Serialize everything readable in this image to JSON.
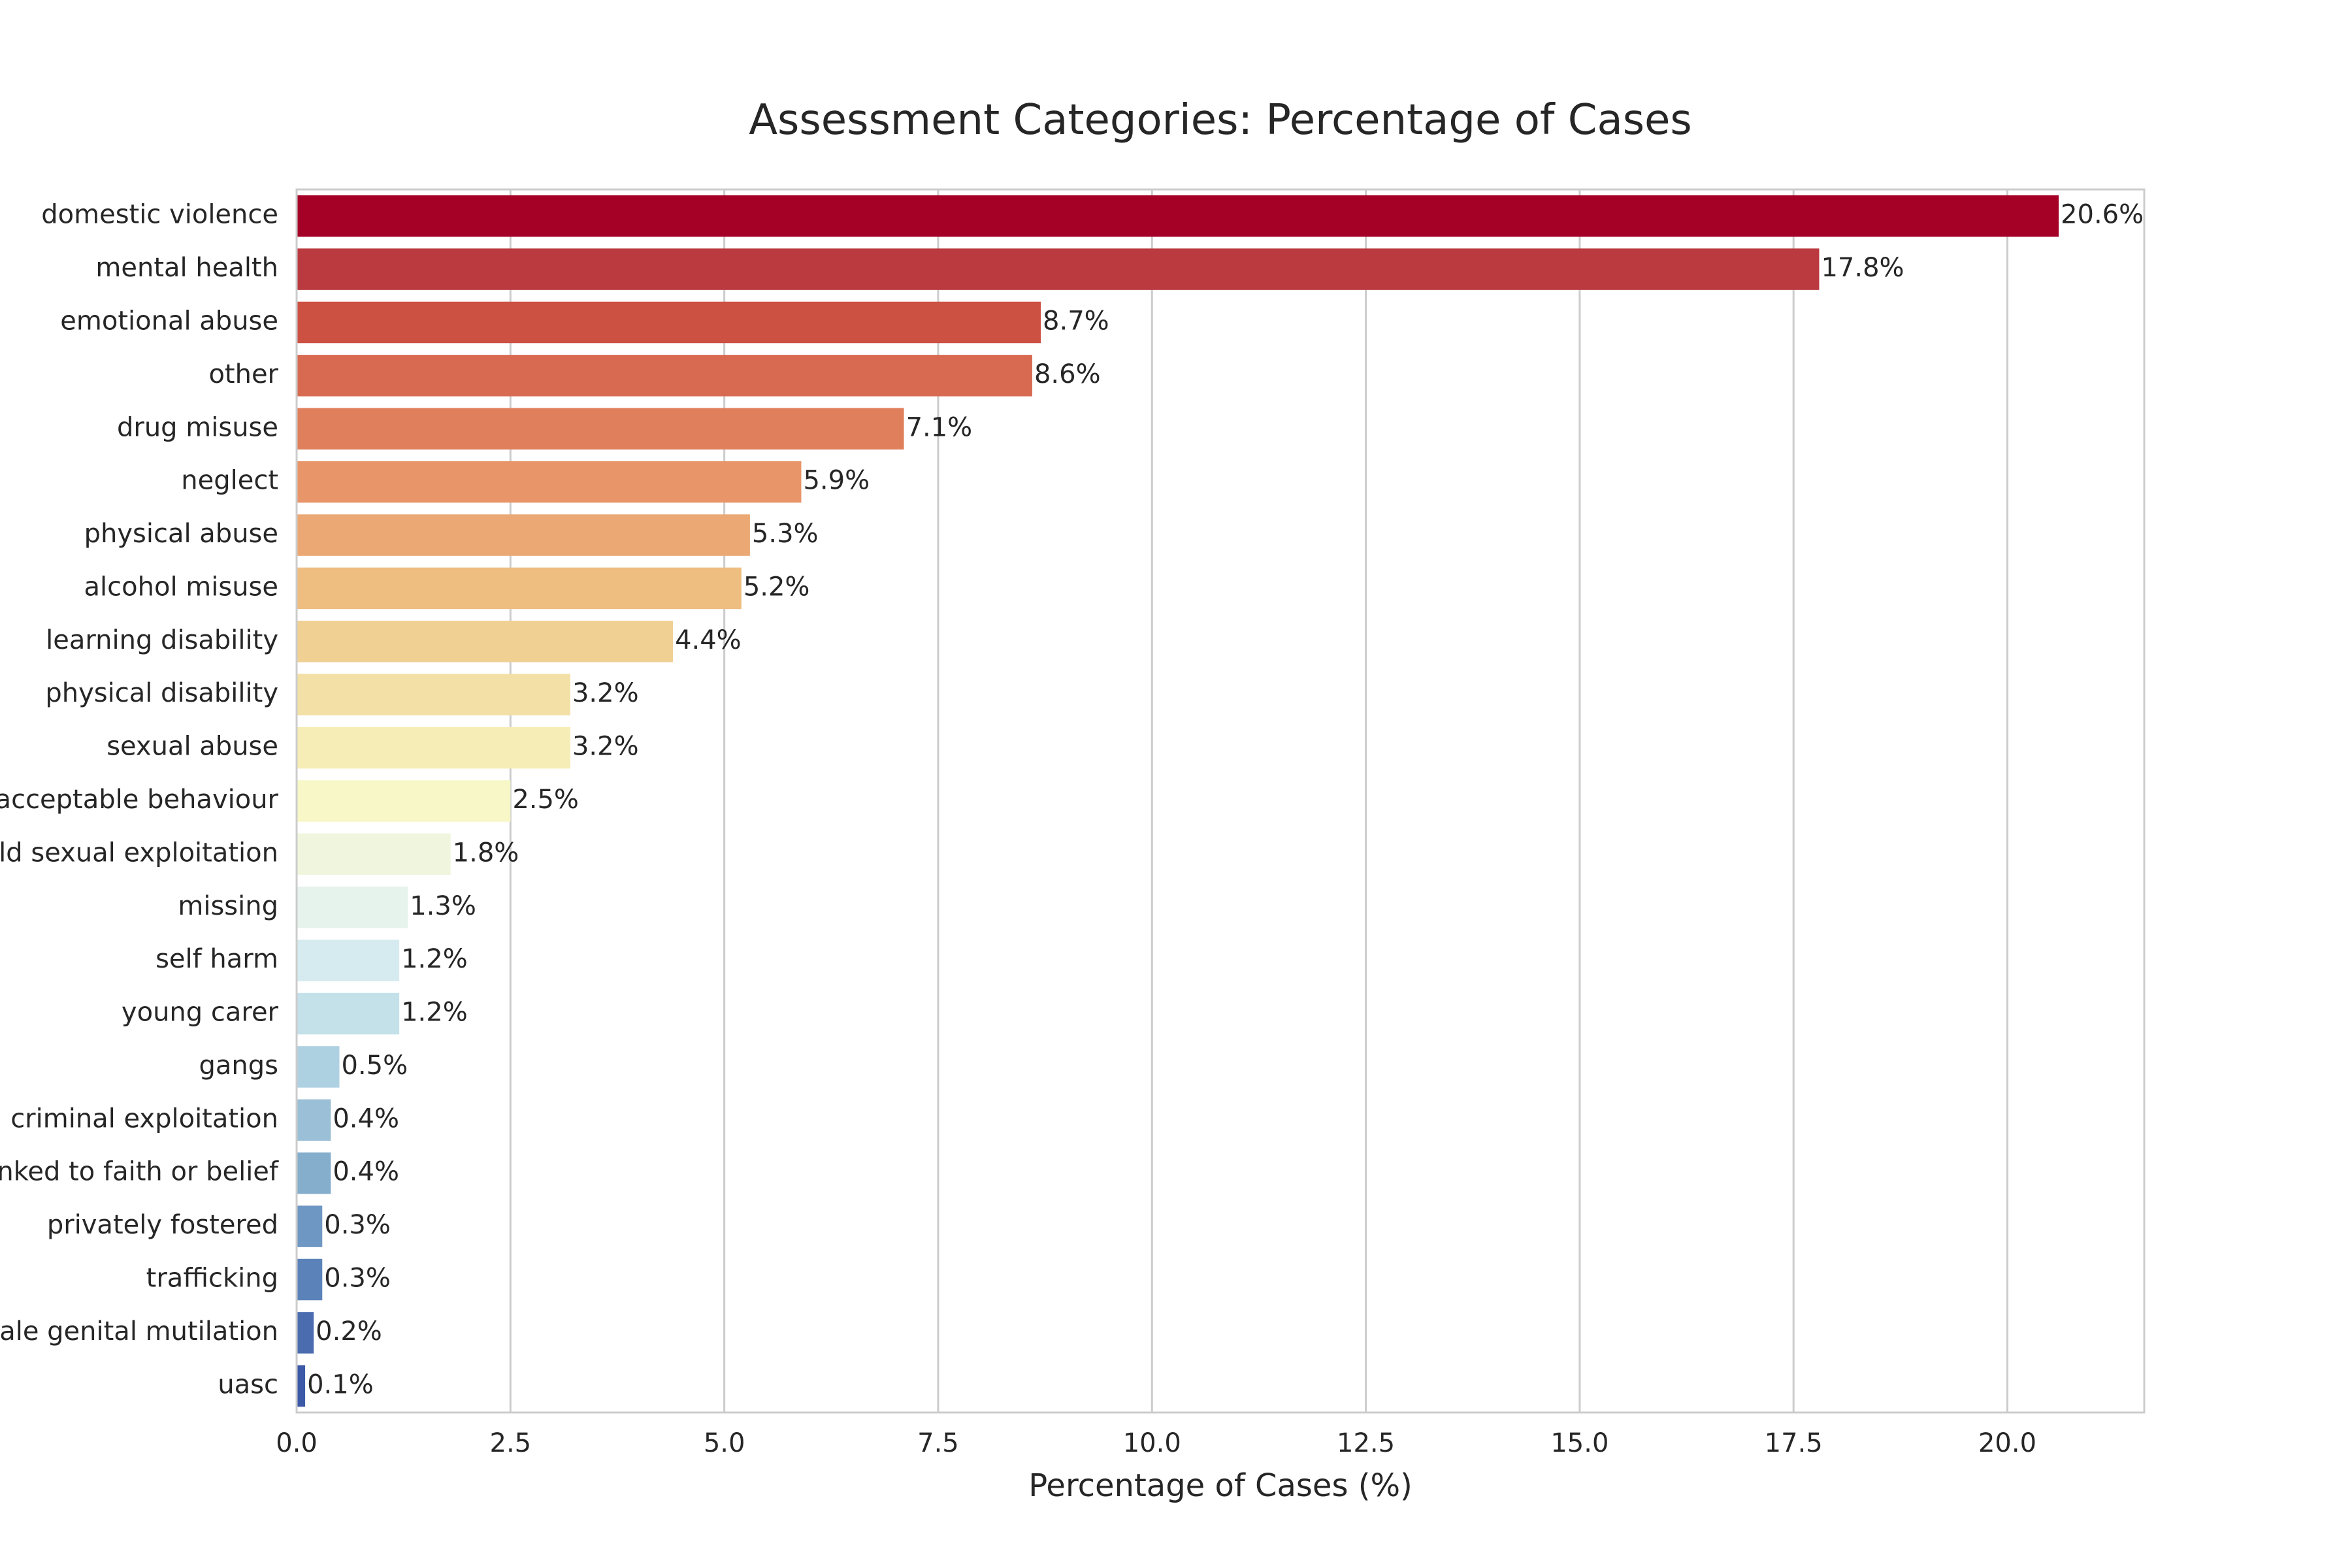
{
  "chart_data": {
    "type": "bar",
    "orientation": "horizontal",
    "title": "Assessment Categories: Percentage of Cases",
    "xlabel": "Percentage of Cases (%)",
    "ylabel": "",
    "xlim": [
      0,
      21.6
    ],
    "xticks": [
      0.0,
      2.5,
      5.0,
      7.5,
      10.0,
      12.5,
      15.0,
      17.5,
      20.0
    ],
    "xtick_labels": [
      "0.0",
      "2.5",
      "5.0",
      "7.5",
      "10.0",
      "12.5",
      "15.0",
      "17.5",
      "20.0"
    ],
    "grid": "vertical",
    "categories": [
      "domestic violence",
      "mental health",
      "emotional abuse",
      "other",
      "drug misuse",
      "neglect",
      "physical abuse",
      "alcohol misuse",
      "learning disability",
      "physical disability",
      "sexual abuse",
      "socially unacceptable behaviour",
      "child sexual exploitation",
      "missing",
      "self harm",
      "young carer",
      "gangs",
      "child criminal exploitation",
      "abuse linked to faith or belief",
      "privately fostered",
      "trafficking",
      "female genital mutilation",
      "uasc"
    ],
    "values": [
      20.6,
      17.8,
      8.7,
      8.6,
      7.1,
      5.9,
      5.3,
      5.2,
      4.4,
      3.2,
      3.2,
      2.5,
      1.8,
      1.3,
      1.2,
      1.2,
      0.5,
      0.4,
      0.4,
      0.3,
      0.3,
      0.2,
      0.1
    ],
    "value_labels": [
      "20.6%",
      "17.8%",
      "8.7%",
      "8.6%",
      "7.1%",
      "5.9%",
      "5.3%",
      "5.2%",
      "4.4%",
      "3.2%",
      "3.2%",
      "2.5%",
      "1.8%",
      "1.3%",
      "1.2%",
      "1.2%",
      "0.5%",
      "0.4%",
      "0.4%",
      "0.3%",
      "0.3%",
      "0.2%",
      "0.1%"
    ],
    "colors": [
      "#a50026",
      "#bb3a3f",
      "#cc5143",
      "#d76a51",
      "#e07f5c",
      "#e8956a",
      "#eba874",
      "#eebd80",
      "#f0d193",
      "#f3e0a6",
      "#f6ecb5",
      "#f7f7c7",
      "#eff6dd",
      "#e6f3ec",
      "#d6ebf0",
      "#c4e1ea",
      "#aed1e1",
      "#9abfd6",
      "#85adcc",
      "#6f97c3",
      "#5b83ba",
      "#4b6db0",
      "#3c59a7"
    ]
  }
}
